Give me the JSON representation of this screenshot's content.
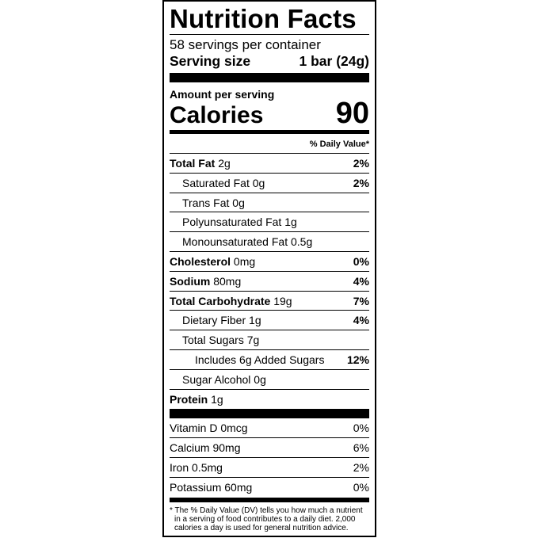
{
  "title": "Nutrition Facts",
  "servings_per_container": "58 servings per container",
  "serving_size": {
    "label": "Serving size",
    "value": "1 bar (24g)"
  },
  "amount_per_serving": "Amount per serving",
  "calories": {
    "label": "Calories",
    "value": "90"
  },
  "daily_value_header": "% Daily Value*",
  "nutrients": [
    {
      "name": "Total Fat",
      "amount": "2g",
      "dv": "2%",
      "bold": true,
      "indent": 0
    },
    {
      "name": "Saturated Fat",
      "amount": "0g",
      "dv": "2%",
      "bold": false,
      "indent": 1
    },
    {
      "name": "Trans Fat",
      "amount": "0g",
      "dv": "",
      "bold": false,
      "indent": 1
    },
    {
      "name": "Polyunsaturated Fat",
      "amount": "1g",
      "dv": "",
      "bold": false,
      "indent": 1
    },
    {
      "name": "Monounsaturated Fat",
      "amount": "0.5g",
      "dv": "",
      "bold": false,
      "indent": 1
    },
    {
      "name": "Cholesterol",
      "amount": "0mg",
      "dv": "0%",
      "bold": true,
      "indent": 0
    },
    {
      "name": "Sodium",
      "amount": "80mg",
      "dv": "4%",
      "bold": true,
      "indent": 0
    },
    {
      "name": "Total Carbohydrate",
      "amount": "19g",
      "dv": "7%",
      "bold": true,
      "indent": 0
    },
    {
      "name": "Dietary Fiber",
      "amount": "1g",
      "dv": "4%",
      "bold": false,
      "indent": 1
    },
    {
      "name": "Total Sugars",
      "amount": "7g",
      "dv": "",
      "bold": false,
      "indent": 1
    },
    {
      "name": "Includes 6g Added Sugars",
      "amount": "",
      "dv": "12%",
      "bold": false,
      "indent": 2
    },
    {
      "name": "Sugar Alcohol",
      "amount": "0g",
      "dv": "",
      "bold": false,
      "indent": 1
    },
    {
      "name": "Protein",
      "amount": "1g",
      "dv": "",
      "bold": true,
      "indent": 0
    }
  ],
  "vitamins": [
    {
      "name": "Vitamin D 0mcg",
      "dv": "0%"
    },
    {
      "name": "Calcium 90mg",
      "dv": "6%"
    },
    {
      "name": "Iron 0.5mg",
      "dv": "2%"
    },
    {
      "name": "Potassium 60mg",
      "dv": "0%"
    }
  ],
  "footnote": "* The % Daily Value (DV) tells you how much a nutrient in a serving of food contributes to a daily diet. 2,000 calories a day is used for general nutrition advice."
}
